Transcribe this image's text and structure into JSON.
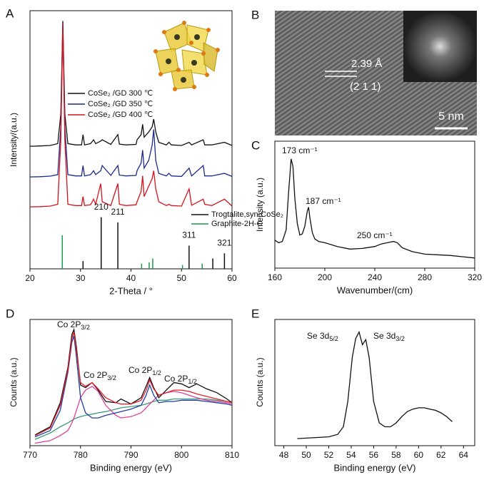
{
  "chart_data": [
    {
      "type": "line",
      "panel": "A",
      "xlabel": "2-Theta / °",
      "ylabel": "Intensity/(a.u.)",
      "xlim": [
        20,
        60
      ],
      "ylim": [
        0,
        100
      ],
      "xticks": [
        20,
        30,
        40,
        50,
        60
      ],
      "legend": true,
      "series": [
        {
          "name": "CoSe₂ /GD  300 ℃",
          "color": "#111111",
          "x": [
            20,
            22,
            24,
            25.5,
            26.1,
            26.5,
            26.9,
            27.5,
            29,
            30.2,
            30.5,
            30.8,
            32,
            32.6,
            33,
            34,
            34.3,
            36,
            37.4,
            37.7,
            39,
            41,
            41.2,
            42,
            42.3,
            42.6,
            43.5,
            44.2,
            44.5,
            44.9,
            45.5,
            47,
            47.5,
            48,
            50,
            51.5,
            52,
            54.3,
            54.6,
            56,
            58.5,
            60
          ],
          "values": [
            47.5,
            47.6,
            47.8,
            48.5,
            60,
            96,
            60,
            48.5,
            48,
            48,
            52,
            48,
            48.5,
            50,
            48.5,
            49.5,
            50,
            48.2,
            52,
            48.3,
            48,
            48.2,
            50,
            52,
            56,
            51,
            53,
            55,
            58,
            53,
            49,
            48,
            49,
            48,
            47.8,
            49,
            48,
            50,
            48,
            48,
            49,
            47.8
          ]
        },
        {
          "name": "CoSe₂ /GD  350 ℃",
          "color": "#1d2a8a",
          "x": [
            20,
            22,
            24,
            25.5,
            26.1,
            26.5,
            26.9,
            27.5,
            29,
            30.2,
            30.5,
            30.8,
            32,
            32.6,
            33,
            34,
            34.3,
            36,
            37.4,
            37.7,
            39,
            41,
            41.2,
            42,
            42.3,
            42.6,
            43.5,
            44.2,
            44.5,
            44.9,
            45.5,
            47,
            47.5,
            48,
            50,
            51.5,
            52,
            54.3,
            54.6,
            56,
            58.5,
            60
          ],
          "values": [
            35.6,
            35.7,
            35.9,
            36.5,
            55,
            95,
            55,
            36.5,
            36,
            36,
            40,
            36,
            36.5,
            38,
            36.5,
            38,
            40,
            36.2,
            40,
            36.3,
            36,
            36.2,
            38,
            41,
            46,
            39,
            42,
            48,
            54,
            42,
            37,
            36,
            37,
            36,
            35.8,
            39,
            36,
            40,
            36,
            36,
            37,
            35.8
          ]
        },
        {
          "name": "CoSe₂ /GD  400 ℃",
          "color": "#d4141c",
          "x": [
            20,
            22,
            24,
            25.5,
            26.1,
            26.5,
            26.9,
            27.5,
            29,
            30.2,
            30.5,
            30.8,
            32,
            32.6,
            33,
            34,
            34.3,
            36,
            37.4,
            37.7,
            39,
            41,
            41.2,
            42,
            42.3,
            42.6,
            43.5,
            44.2,
            44.5,
            44.9,
            45.5,
            47,
            47.5,
            48,
            50,
            51.5,
            52,
            54.3,
            54.6,
            56,
            58.5,
            60
          ],
          "values": [
            24,
            24.1,
            24.3,
            25,
            50,
            95,
            50,
            25,
            24.5,
            24.5,
            28,
            24.5,
            24.8,
            27,
            25,
            33,
            26,
            24.5,
            33,
            25,
            24.5,
            24.8,
            26,
            30,
            36,
            28,
            32,
            35,
            38,
            31,
            26,
            24.5,
            25,
            24.5,
            24.3,
            31,
            24.6,
            27,
            25,
            24.5,
            27,
            24.3
          ]
        },
        {
          "name": "Trogtalite,syn-CoSe₂",
          "color": "#111111",
          "style": "stick",
          "x": [
            30.5,
            34.1,
            37.4,
            51.5,
            56.2,
            58.5
          ],
          "values": [
            3,
            20,
            18,
            9,
            4,
            6
          ],
          "labels": [
            null,
            "210",
            "211",
            "311",
            null,
            "321"
          ]
        },
        {
          "name": "Graphite-2H-C",
          "color": "#1a9a4a",
          "style": "stick",
          "x": [
            26.4,
            42.1,
            43.6,
            44.3,
            50.2,
            54.1
          ],
          "values": [
            13,
            2,
            2.5,
            4,
            1.5,
            2
          ]
        }
      ]
    },
    {
      "type": "line",
      "panel": "C",
      "xlabel": "Wavenumber/(cm)",
      "ylabel": "Intensity (a.u.)",
      "xlim": [
        160,
        320
      ],
      "ylim": [
        0,
        100
      ],
      "xticks": [
        160,
        200,
        240,
        280,
        320
      ],
      "annotations": [
        "173 cm⁻¹",
        "187 cm⁻¹",
        "250 cm⁻¹"
      ],
      "series": [
        {
          "color": "#111111",
          "x": [
            160,
            163,
            166,
            169,
            171,
            173,
            174.5,
            176,
            178,
            180,
            182,
            184,
            186,
            187,
            188,
            190,
            192,
            195,
            200,
            210,
            220,
            230,
            240,
            245,
            250,
            255,
            258,
            262,
            270,
            280,
            290,
            300,
            310,
            320
          ],
          "values": [
            22,
            20,
            21,
            30,
            60,
            86,
            80,
            55,
            35,
            26,
            27,
            33,
            45,
            48,
            40,
            28,
            23,
            21,
            20,
            17,
            15,
            15.5,
            17,
            19,
            20,
            21,
            20,
            16,
            13,
            11,
            10.5,
            10,
            9,
            8
          ]
        }
      ]
    },
    {
      "type": "line",
      "panel": "D",
      "xlabel": "Binding energy (eV)",
      "ylabel": "Counts (a.u.)",
      "xlim": [
        770,
        810
      ],
      "ylim": [
        0,
        100
      ],
      "xticks": [
        770,
        780,
        790,
        800,
        810
      ],
      "annotations": [
        {
          "text": "Co 2P",
          "sub": "3/2"
        },
        {
          "text": "Co 2P",
          "sub": "3/2"
        },
        {
          "text": "Co 2P",
          "sub": "1/2"
        },
        {
          "text": "Co 2P",
          "sub": "1/2"
        }
      ],
      "series": [
        {
          "color": "#3a9a7a",
          "x": [
            771,
            774,
            776,
            777.5,
            778.3,
            778.7,
            779.2,
            780,
            781,
            782.3,
            783.5,
            785,
            787,
            788,
            790,
            792,
            793,
            793.7,
            794.5,
            795.5,
            797,
            798.5,
            800,
            801.5,
            803,
            805,
            807,
            809,
            810
          ],
          "values": [
            5,
            10,
            15,
            18,
            20,
            21,
            22,
            23,
            24,
            25,
            26,
            27,
            29,
            30,
            31,
            32,
            33,
            34,
            35,
            36,
            36,
            37,
            37,
            37,
            37,
            37,
            36,
            35,
            34
          ]
        },
        {
          "color": "#e0409a",
          "x": [
            771,
            774,
            776,
            777.5,
            778.3,
            778.7,
            779.2,
            780,
            781,
            782.3,
            783.5,
            785,
            787,
            788,
            790,
            792,
            793,
            793.7,
            794.5,
            795.5,
            797,
            798.5,
            800,
            801.5,
            803,
            805,
            807,
            809,
            810
          ],
          "values": [
            2,
            4,
            8,
            12,
            18,
            22,
            28,
            38,
            44,
            47,
            43,
            32,
            24,
            22,
            23,
            26,
            30,
            33,
            36,
            40,
            42,
            43,
            42,
            40,
            38,
            36,
            35,
            34,
            33
          ]
        },
        {
          "color": "#1f3f9e",
          "x": [
            771,
            774,
            776,
            777.5,
            778.3,
            778.7,
            779.2,
            780,
            781,
            782.3,
            783.5,
            785,
            787,
            788,
            790,
            792,
            793,
            793.7,
            794.5,
            795.5,
            797,
            798.5,
            800,
            801.5,
            803,
            805,
            807,
            809,
            810
          ],
          "values": [
            7,
            12,
            28,
            58,
            82,
            87,
            70,
            38,
            26,
            22,
            22,
            24,
            26,
            27,
            29,
            32,
            40,
            48,
            40,
            34,
            35,
            35,
            36,
            36,
            36,
            35,
            34,
            33,
            32
          ]
        },
        {
          "color": "#111111",
          "x": [
            771,
            774,
            776,
            777.5,
            778.3,
            778.7,
            779.2,
            780,
            781,
            782.3,
            783.5,
            785,
            787,
            788,
            790,
            792,
            793,
            793.7,
            794.5,
            795.5,
            797,
            798.5,
            800,
            801.5,
            803,
            805,
            807,
            809,
            810
          ],
          "values": [
            8.5,
            15,
            34,
            62,
            88,
            92,
            78,
            48,
            46,
            50,
            44,
            35,
            34,
            37,
            33,
            38,
            47,
            54,
            46,
            38,
            44,
            50,
            49,
            46,
            49,
            45,
            42,
            37,
            34
          ]
        },
        {
          "color": "#e0202a",
          "x": [
            771,
            774,
            776,
            777.5,
            778.3,
            778.7,
            779.2,
            780,
            781,
            782.3,
            783.5,
            785,
            787,
            788,
            790,
            792,
            793,
            793.7,
            794.5,
            795.5,
            797,
            798.5,
            800,
            801.5,
            803,
            805,
            807,
            809,
            810
          ],
          "values": [
            8,
            14,
            32,
            60,
            85,
            90,
            75,
            50,
            47,
            50,
            45,
            38,
            34,
            33,
            33,
            36,
            44,
            52,
            45,
            40,
            42,
            44,
            44,
            43,
            41,
            39,
            37,
            35,
            34
          ]
        }
      ]
    },
    {
      "type": "line",
      "panel": "E",
      "xlabel": "Binding energy (eV)",
      "ylabel": "Counts (a.u.)",
      "xlim": [
        47.2,
        65
      ],
      "ylim": [
        0,
        100
      ],
      "xticks": [
        48,
        50,
        52,
        54,
        56,
        58,
        60,
        62,
        64
      ],
      "annotations": [
        {
          "text": "Se 3d",
          "sub": "5/2"
        },
        {
          "text": "Se 3d",
          "sub": "3/2"
        }
      ],
      "series": [
        {
          "color": "#111111",
          "x": [
            49.2,
            50,
            51,
            52,
            52.8,
            53.3,
            53.7,
            54.1,
            54.4,
            54.7,
            55,
            55.3,
            55.6,
            56,
            56.5,
            57,
            57.5,
            58,
            58.5,
            59,
            59.5,
            60,
            60.5,
            61,
            61.5,
            62,
            62.5,
            63
          ],
          "values": [
            5.6,
            6,
            6.5,
            7,
            9,
            15,
            35,
            70,
            85,
            90,
            80,
            84,
            70,
            35,
            18,
            15,
            15,
            18,
            23,
            27,
            29,
            30,
            30,
            29,
            28,
            26,
            23,
            19
          ]
        }
      ]
    }
  ],
  "image": {
    "panel": "B",
    "lattice_spacing": "2.39 Å",
    "plane": "(2 1 1)",
    "scale_bar": "5 nm"
  }
}
